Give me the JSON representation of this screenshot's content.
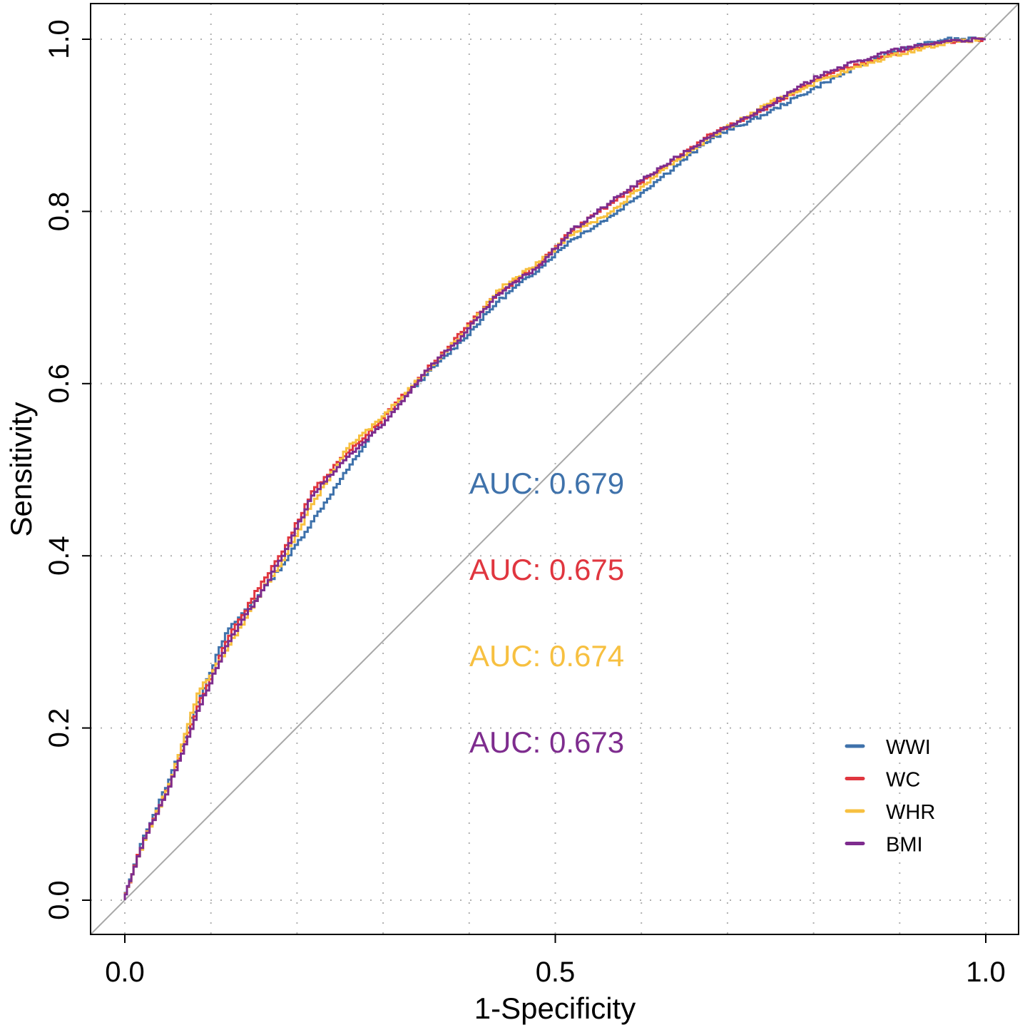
{
  "chart_data": {
    "type": "line",
    "xlabel": "1-Specificity",
    "ylabel": "Sensitivity",
    "xlim": [
      -0.04,
      1.04
    ],
    "ylim": [
      -0.04,
      1.04
    ],
    "xticks": [
      "0.0",
      "0.5",
      "1.0"
    ],
    "xtick_values": [
      0,
      0.5,
      1
    ],
    "yticks": [
      "0.0",
      "0.2",
      "0.4",
      "0.6",
      "0.8",
      "1.0"
    ],
    "ytick_values": [
      0,
      0.2,
      0.4,
      0.6,
      0.8,
      1.0
    ],
    "grid": true,
    "grid_style": "dotted",
    "reference_line": "diagonal",
    "legend_placement": "bottom-right",
    "series": [
      {
        "name": "WWI",
        "color": "#3F72AB",
        "auc_label": "AUC: 0.679",
        "x": [
          0,
          0.01,
          0.025,
          0.054,
          0.087,
          0.12,
          0.162,
          0.186,
          0.22,
          0.261,
          0.302,
          0.352,
          0.394,
          0.435,
          0.485,
          0.518,
          0.568,
          0.626,
          0.684,
          0.75,
          0.816,
          0.89,
          0.956,
          1
        ],
        "y": [
          0,
          0.03,
          0.075,
          0.14,
          0.23,
          0.31,
          0.36,
          0.39,
          0.44,
          0.5,
          0.56,
          0.61,
          0.65,
          0.695,
          0.735,
          0.765,
          0.795,
          0.84,
          0.885,
          0.915,
          0.95,
          0.985,
          1.0,
          1
        ]
      },
      {
        "name": "WC",
        "color": "#E0363F",
        "auc_label": "AUC: 0.675",
        "x": [
          0,
          0.01,
          0.025,
          0.054,
          0.087,
          0.12,
          0.162,
          0.186,
          0.22,
          0.261,
          0.302,
          0.352,
          0.394,
          0.435,
          0.485,
          0.518,
          0.568,
          0.626,
          0.684,
          0.75,
          0.816,
          0.89,
          0.956,
          1
        ],
        "y": [
          0,
          0.03,
          0.072,
          0.134,
          0.225,
          0.3,
          0.37,
          0.405,
          0.475,
          0.52,
          0.56,
          0.615,
          0.66,
          0.705,
          0.74,
          0.775,
          0.81,
          0.85,
          0.89,
          0.922,
          0.958,
          0.982,
          0.997,
          1
        ]
      },
      {
        "name": "WHR",
        "color": "#F7C040",
        "auc_label": "AUC: 0.674",
        "x": [
          0,
          0.01,
          0.025,
          0.054,
          0.087,
          0.12,
          0.162,
          0.186,
          0.22,
          0.261,
          0.302,
          0.352,
          0.394,
          0.435,
          0.485,
          0.518,
          0.568,
          0.626,
          0.684,
          0.75,
          0.816,
          0.89,
          0.956,
          1
        ],
        "y": [
          0,
          0.03,
          0.07,
          0.135,
          0.24,
          0.29,
          0.36,
          0.395,
          0.46,
          0.525,
          0.562,
          0.614,
          0.657,
          0.708,
          0.742,
          0.772,
          0.8,
          0.848,
          0.887,
          0.925,
          0.955,
          0.98,
          0.996,
          1
        ]
      },
      {
        "name": "BMI",
        "color": "#7E2C8E",
        "auc_label": "AUC: 0.673",
        "x": [
          0,
          0.01,
          0.025,
          0.054,
          0.087,
          0.12,
          0.162,
          0.186,
          0.22,
          0.261,
          0.302,
          0.352,
          0.394,
          0.435,
          0.485,
          0.518,
          0.568,
          0.626,
          0.684,
          0.75,
          0.816,
          0.89,
          0.956,
          1
        ],
        "y": [
          0,
          0.03,
          0.072,
          0.132,
          0.22,
          0.295,
          0.36,
          0.4,
          0.47,
          0.515,
          0.552,
          0.615,
          0.655,
          0.703,
          0.738,
          0.775,
          0.812,
          0.852,
          0.888,
          0.923,
          0.962,
          0.986,
          0.998,
          1
        ]
      }
    ]
  }
}
